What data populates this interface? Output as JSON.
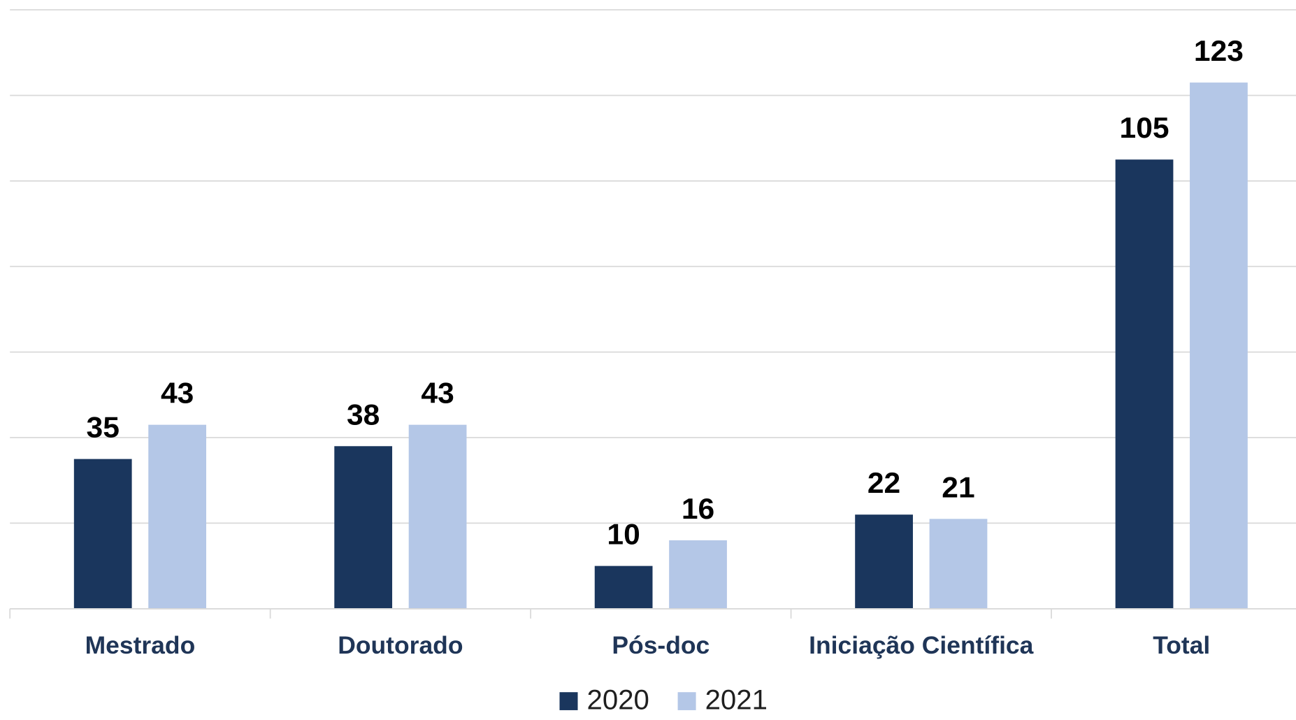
{
  "chart_data": {
    "type": "bar",
    "categories": [
      "Mestrado",
      "Doutorado",
      "Pós-doc",
      "Iniciação Científica",
      "Total"
    ],
    "series": [
      {
        "name": "2020",
        "color": "#1a365d",
        "values": [
          35,
          38,
          10,
          22,
          105
        ]
      },
      {
        "name": "2021",
        "color": "#b4c7e7",
        "values": [
          43,
          43,
          16,
          21,
          123
        ]
      }
    ],
    "ylim": [
      0,
      140
    ],
    "yticks": [
      0,
      20,
      40,
      60,
      80,
      100,
      120,
      140
    ],
    "grid": true,
    "legend": "bottom"
  }
}
